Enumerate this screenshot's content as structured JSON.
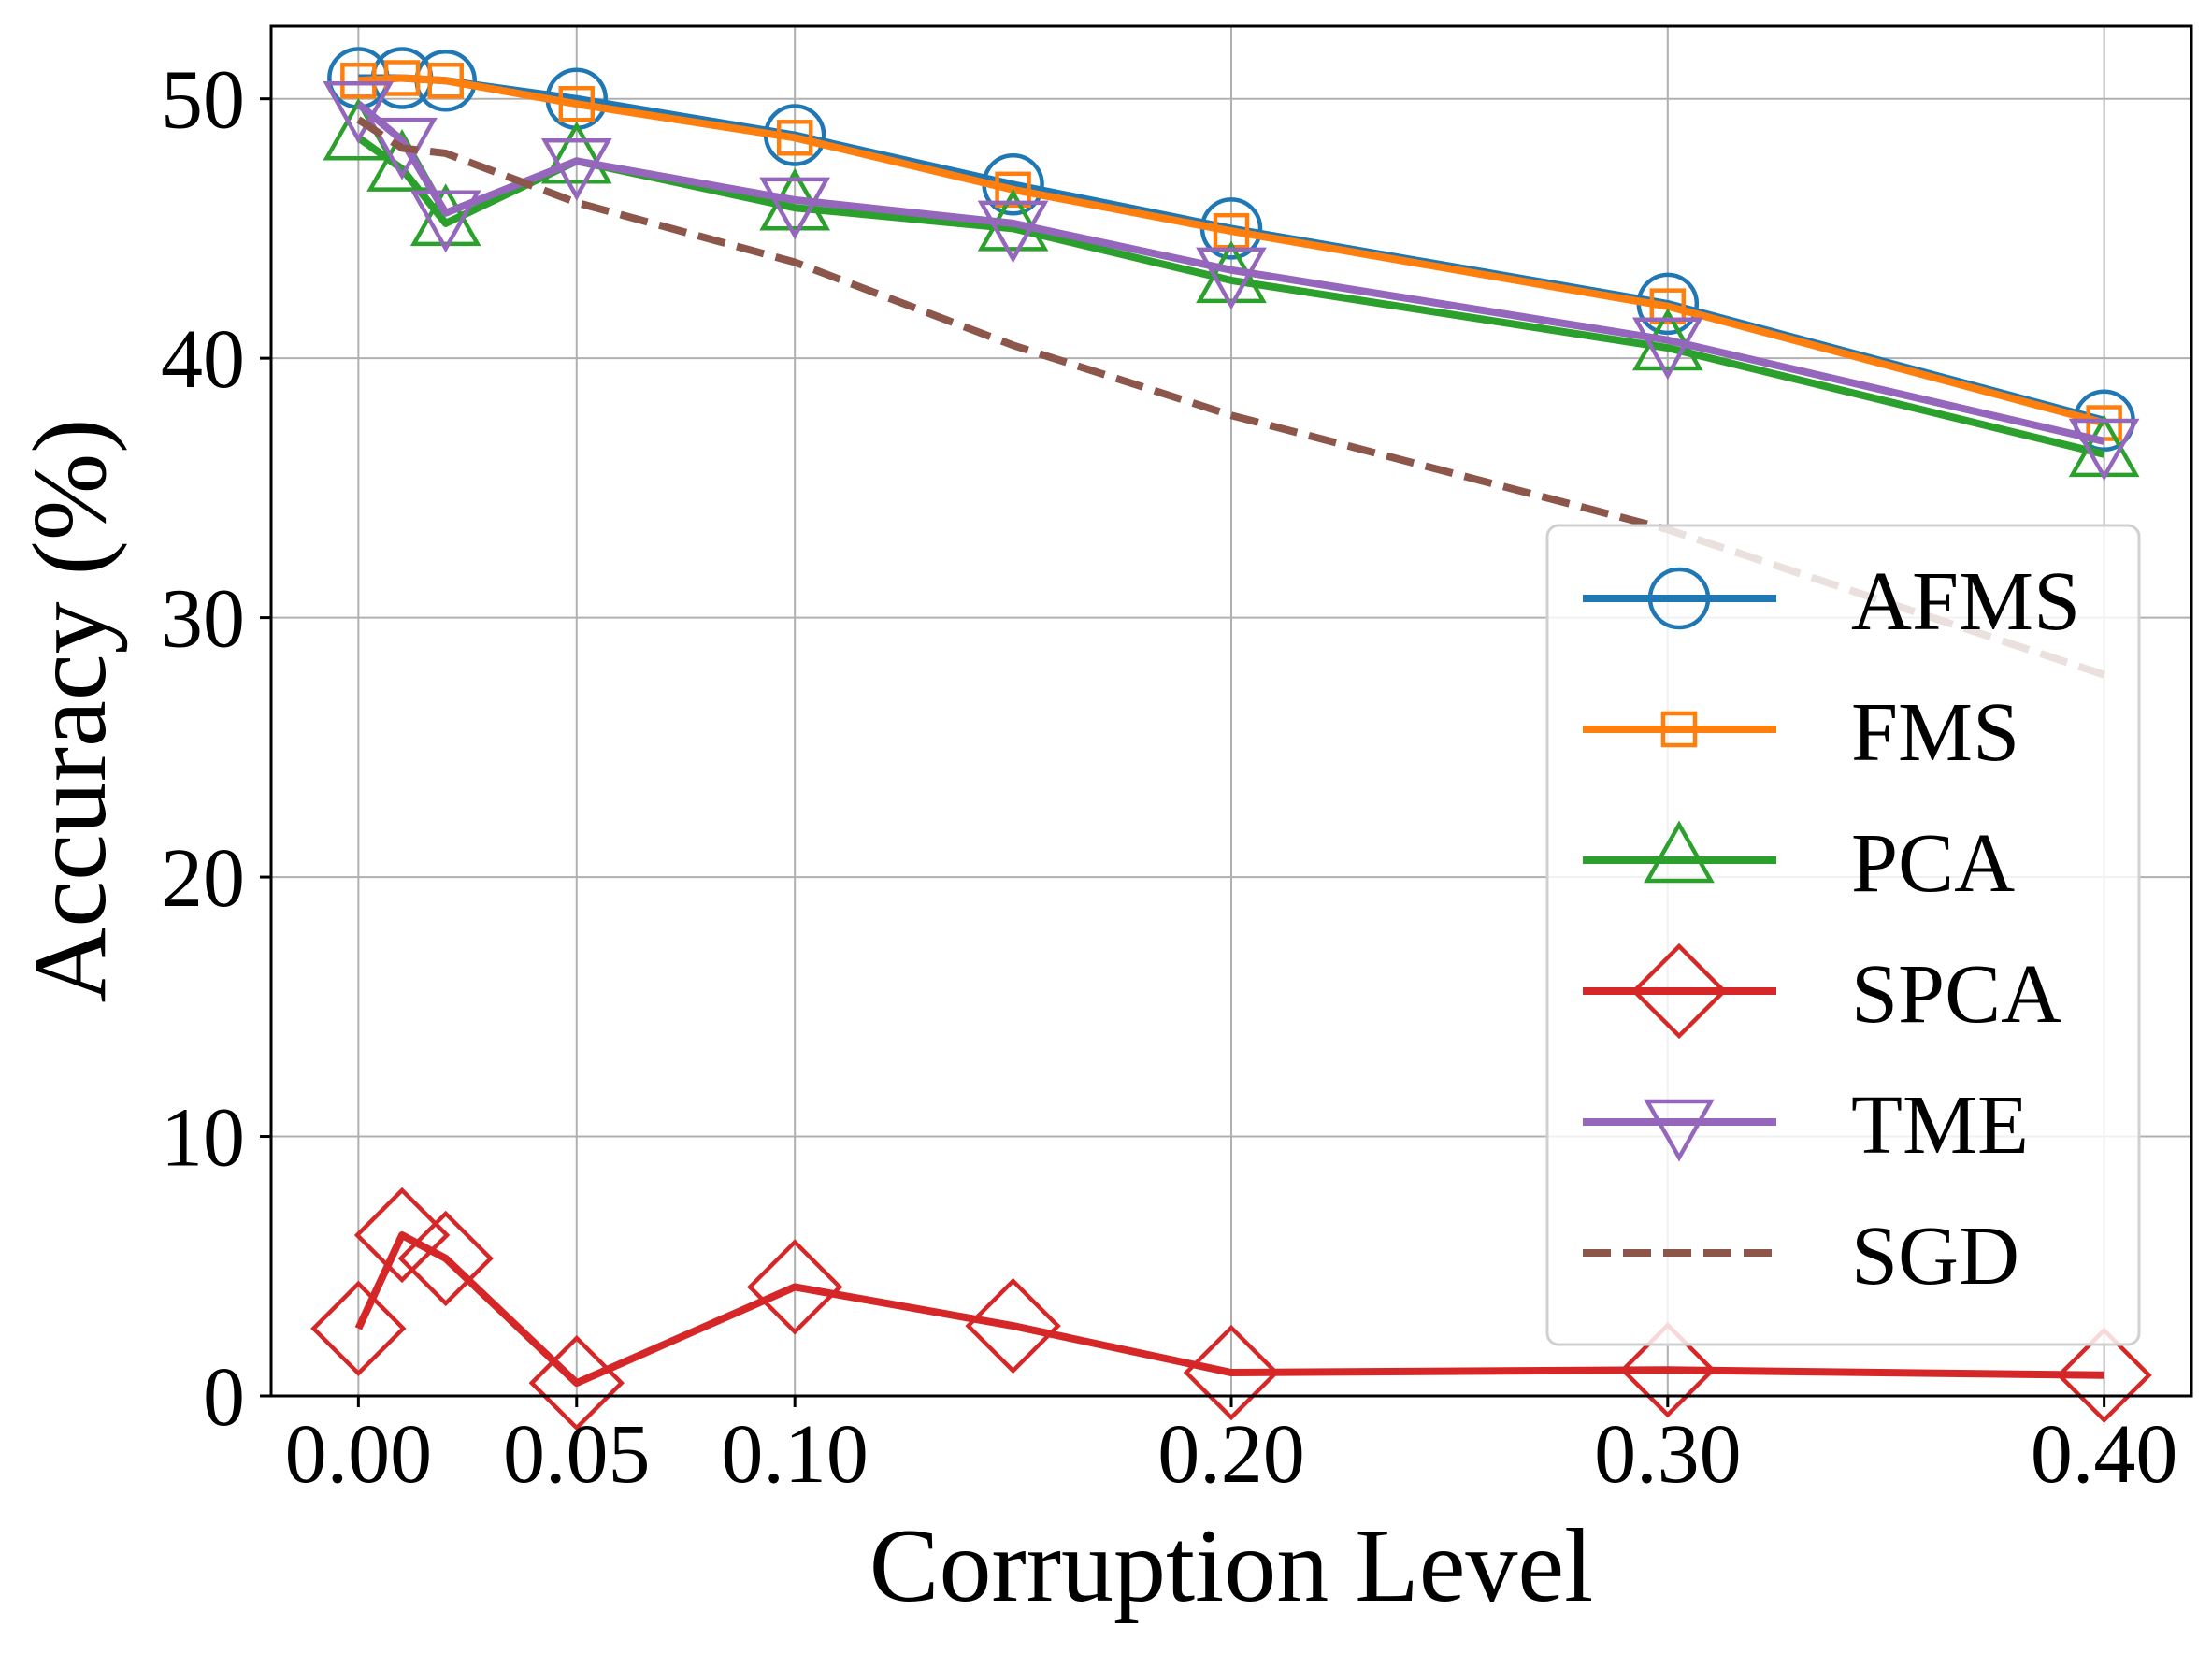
{
  "chart_data": {
    "type": "line",
    "title": "",
    "xlabel": "Corruption Level",
    "ylabel": "Accuracy (%)",
    "x": [
      0.0,
      0.01,
      0.02,
      0.05,
      0.1,
      0.15,
      0.2,
      0.3,
      0.4
    ],
    "x_ticks": [
      0.0,
      0.05,
      0.1,
      0.2,
      0.3,
      0.4
    ],
    "x_tick_labels": [
      "0.00",
      "0.05",
      "0.10",
      "0.20",
      "0.30",
      "0.40"
    ],
    "y_ticks": [
      0,
      10,
      20,
      30,
      40,
      50
    ],
    "y_tick_labels": [
      "0",
      "10",
      "20",
      "30",
      "40",
      "50"
    ],
    "xlim": [
      -0.02,
      0.42
    ],
    "ylim": [
      0,
      52.8
    ],
    "grid": true,
    "legend_position": "lower-right",
    "series": [
      {
        "name": "AFMS",
        "color": "#1f77b4",
        "marker": "circle",
        "dash": false,
        "values": [
          50.8,
          50.8,
          50.7,
          50.0,
          48.6,
          46.7,
          45.0,
          42.1,
          37.6
        ]
      },
      {
        "name": "FMS",
        "color": "#ff7f0e",
        "marker": "square",
        "dash": false,
        "values": [
          50.7,
          50.8,
          50.7,
          49.8,
          48.5,
          46.5,
          44.9,
          42.0,
          37.5
        ]
      },
      {
        "name": "PCA",
        "color": "#2ca02c",
        "marker": "triangle-up",
        "dash": false,
        "values": [
          48.5,
          47.3,
          45.2,
          47.6,
          45.8,
          45.0,
          43.0,
          40.4,
          36.3
        ]
      },
      {
        "name": "SPCA",
        "color": "#d62728",
        "marker": "diamond",
        "dash": false,
        "values": [
          2.6,
          6.2,
          5.3,
          0.5,
          4.2,
          2.7,
          0.9,
          1.0,
          0.8
        ]
      },
      {
        "name": "TME",
        "color": "#9467bd",
        "marker": "triangle-down",
        "dash": false,
        "values": [
          49.8,
          48.4,
          45.6,
          47.6,
          46.1,
          45.2,
          43.4,
          40.7,
          36.8
        ]
      },
      {
        "name": "SGD",
        "color": "#8c564b",
        "marker": "none",
        "dash": true,
        "values": [
          49.2,
          48.1,
          47.9,
          46.0,
          43.7,
          40.5,
          37.8,
          33.4,
          27.8
        ]
      }
    ]
  }
}
